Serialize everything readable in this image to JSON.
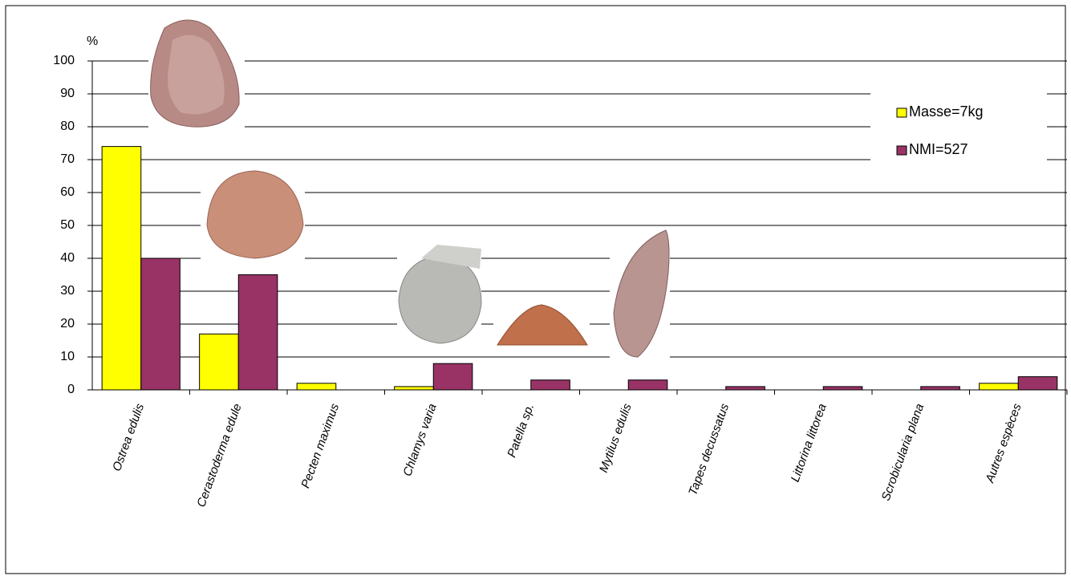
{
  "chart_data": {
    "type": "bar",
    "y_label": "%",
    "categories": [
      "Ostrea edulis",
      "Cerastoderma edule",
      "Pecten maximus",
      "Chlamys  varia",
      "Patella sp.",
      "Mytilus edulis",
      "Tapes  decussatus",
      "Littorina littorea",
      "Scrobicularia plana",
      "Autres  espèces"
    ],
    "series": [
      {
        "name": "Masse=7kg",
        "color": "#ffff00",
        "values": [
          74,
          17,
          2,
          1,
          0,
          0,
          0,
          0,
          0,
          2
        ]
      },
      {
        "name": "NMI=527",
        "color": "#993366",
        "values": [
          40,
          35,
          0,
          8,
          3,
          3,
          1,
          1,
          1,
          4
        ]
      }
    ],
    "ylim": [
      0,
      100
    ],
    "yticks": [
      0,
      10,
      20,
      30,
      40,
      50,
      60,
      70,
      80,
      90,
      100
    ],
    "grid": true
  }
}
